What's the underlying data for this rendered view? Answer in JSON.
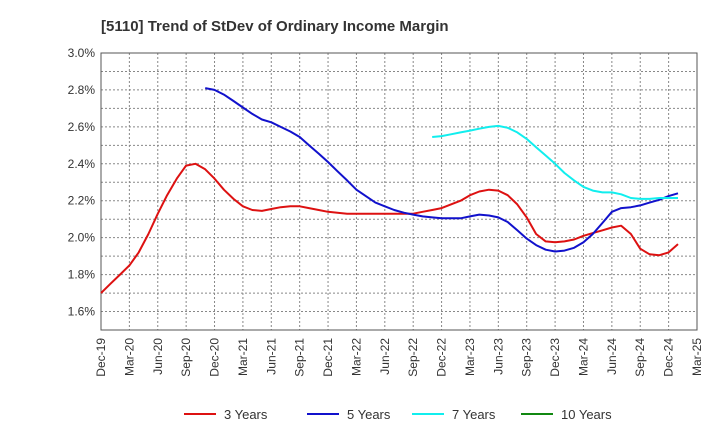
{
  "chart_data": {
    "type": "line",
    "title": "[5110]  Trend of StDev of Ordinary Income Margin",
    "xlabel": "",
    "ylabel": "",
    "ylim": [
      1.5,
      3.0
    ],
    "y_ticks": [
      "1.6%",
      "1.8%",
      "2.0%",
      "2.2%",
      "2.4%",
      "2.6%",
      "2.8%",
      "3.0%"
    ],
    "y_tick_values": [
      1.6,
      1.8,
      2.0,
      2.2,
      2.4,
      2.6,
      2.8,
      3.0
    ],
    "x_ticks": [
      "Dec-19",
      "Mar-20",
      "Jun-20",
      "Sep-20",
      "Dec-20",
      "Mar-21",
      "Jun-21",
      "Sep-21",
      "Dec-21",
      "Mar-22",
      "Jun-22",
      "Sep-22",
      "Dec-22",
      "Mar-23",
      "Jun-23",
      "Sep-23",
      "Dec-23",
      "Mar-24",
      "Jun-24",
      "Sep-24",
      "Dec-24",
      "Mar-25"
    ],
    "grid": true,
    "legend_position": "bottom",
    "series": [
      {
        "name": "3 Years",
        "color": "#dd1111",
        "points": [
          [
            0,
            1.7
          ],
          [
            0.33,
            1.75
          ],
          [
            0.67,
            1.8
          ],
          [
            1,
            1.85
          ],
          [
            1.33,
            1.92
          ],
          [
            1.67,
            2.02
          ],
          [
            2,
            2.13
          ],
          [
            2.33,
            2.23
          ],
          [
            2.67,
            2.32
          ],
          [
            3,
            2.39
          ],
          [
            3.33,
            2.4
          ],
          [
            3.67,
            2.37
          ],
          [
            4,
            2.32
          ],
          [
            4.33,
            2.26
          ],
          [
            4.67,
            2.21
          ],
          [
            5,
            2.17
          ],
          [
            5.33,
            2.15
          ],
          [
            5.67,
            2.145
          ],
          [
            6,
            2.155
          ],
          [
            6.33,
            2.165
          ],
          [
            6.67,
            2.17
          ],
          [
            7,
            2.17
          ],
          [
            7.33,
            2.16
          ],
          [
            7.67,
            2.15
          ],
          [
            8,
            2.14
          ],
          [
            8.33,
            2.135
          ],
          [
            8.67,
            2.13
          ],
          [
            9,
            2.13
          ],
          [
            10,
            2.13
          ],
          [
            11,
            2.13
          ],
          [
            11.33,
            2.14
          ],
          [
            11.67,
            2.15
          ],
          [
            12,
            2.16
          ],
          [
            12.33,
            2.18
          ],
          [
            12.67,
            2.2
          ],
          [
            13,
            2.23
          ],
          [
            13.33,
            2.25
          ],
          [
            13.67,
            2.26
          ],
          [
            14,
            2.255
          ],
          [
            14.33,
            2.23
          ],
          [
            14.67,
            2.18
          ],
          [
            15,
            2.11
          ],
          [
            15.33,
            2.02
          ],
          [
            15.67,
            1.98
          ],
          [
            16,
            1.975
          ],
          [
            16.33,
            1.98
          ],
          [
            16.67,
            1.99
          ],
          [
            17,
            2.01
          ],
          [
            17.33,
            2.025
          ],
          [
            17.67,
            2.04
          ],
          [
            18,
            2.055
          ],
          [
            18.33,
            2.065
          ],
          [
            18.67,
            2.02
          ],
          [
            19,
            1.94
          ],
          [
            19.33,
            1.91
          ],
          [
            19.67,
            1.905
          ],
          [
            20,
            1.92
          ],
          [
            20.33,
            1.965
          ]
        ]
      },
      {
        "name": "5 Years",
        "color": "#1111cc",
        "points": [
          [
            3.67,
            2.81
          ],
          [
            4,
            2.8
          ],
          [
            4.33,
            2.775
          ],
          [
            4.67,
            2.74
          ],
          [
            5,
            2.705
          ],
          [
            5.33,
            2.67
          ],
          [
            5.67,
            2.64
          ],
          [
            6,
            2.625
          ],
          [
            6.33,
            2.6
          ],
          [
            6.67,
            2.575
          ],
          [
            7,
            2.545
          ],
          [
            7.33,
            2.5
          ],
          [
            7.67,
            2.455
          ],
          [
            8,
            2.41
          ],
          [
            8.33,
            2.36
          ],
          [
            8.67,
            2.31
          ],
          [
            9,
            2.26
          ],
          [
            9.33,
            2.225
          ],
          [
            9.67,
            2.19
          ],
          [
            10,
            2.17
          ],
          [
            10.33,
            2.15
          ],
          [
            10.67,
            2.135
          ],
          [
            11,
            2.125
          ],
          [
            11.33,
            2.115
          ],
          [
            11.67,
            2.11
          ],
          [
            12,
            2.105
          ],
          [
            12.67,
            2.105
          ],
          [
            13,
            2.115
          ],
          [
            13.33,
            2.125
          ],
          [
            13.67,
            2.12
          ],
          [
            14,
            2.11
          ],
          [
            14.33,
            2.085
          ],
          [
            14.67,
            2.04
          ],
          [
            15,
            1.995
          ],
          [
            15.33,
            1.96
          ],
          [
            15.67,
            1.935
          ],
          [
            16,
            1.925
          ],
          [
            16.33,
            1.93
          ],
          [
            16.67,
            1.945
          ],
          [
            17,
            1.975
          ],
          [
            17.33,
            2.02
          ],
          [
            17.67,
            2.08
          ],
          [
            18,
            2.14
          ],
          [
            18.33,
            2.16
          ],
          [
            18.67,
            2.165
          ],
          [
            19,
            2.175
          ],
          [
            19.33,
            2.19
          ],
          [
            19.67,
            2.205
          ],
          [
            20,
            2.225
          ],
          [
            20.33,
            2.24
          ]
        ]
      },
      {
        "name": "7 Years",
        "color": "#11eeee",
        "points": [
          [
            11.67,
            2.545
          ],
          [
            12,
            2.55
          ],
          [
            12.33,
            2.56
          ],
          [
            12.67,
            2.57
          ],
          [
            13,
            2.58
          ],
          [
            13.33,
            2.59
          ],
          [
            13.67,
            2.6
          ],
          [
            14,
            2.605
          ],
          [
            14.33,
            2.595
          ],
          [
            14.67,
            2.57
          ],
          [
            15,
            2.535
          ],
          [
            15.33,
            2.49
          ],
          [
            15.67,
            2.445
          ],
          [
            16,
            2.4
          ],
          [
            16.33,
            2.35
          ],
          [
            16.67,
            2.31
          ],
          [
            17,
            2.275
          ],
          [
            17.33,
            2.255
          ],
          [
            17.67,
            2.245
          ],
          [
            18,
            2.245
          ],
          [
            18.33,
            2.235
          ],
          [
            18.67,
            2.215
          ],
          [
            19,
            2.21
          ],
          [
            19.33,
            2.21
          ],
          [
            19.67,
            2.215
          ],
          [
            20,
            2.215
          ],
          [
            20.33,
            2.215
          ]
        ]
      },
      {
        "name": "10 Years",
        "color": "#118811",
        "points": []
      }
    ]
  }
}
